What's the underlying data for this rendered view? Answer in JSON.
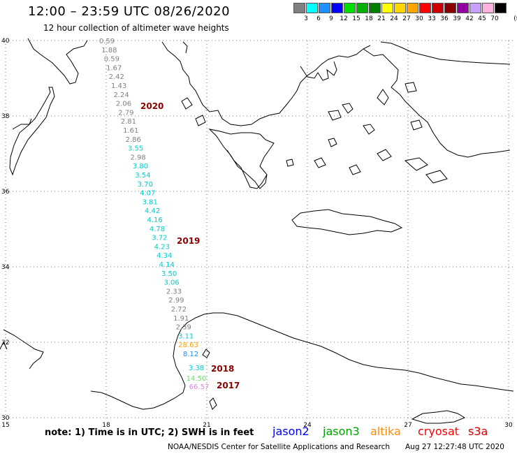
{
  "title": "12:00 – 23:59 UTC 08/26/2020",
  "subtitle": "12 hour collection of altimeter wave heights",
  "legend": {
    "unit": "(ft)",
    "swatches": [
      {
        "label": "3",
        "color": "#808080"
      },
      {
        "label": "6",
        "color": "#00ffff"
      },
      {
        "label": "9",
        "color": "#1e90ff"
      },
      {
        "label": "12",
        "color": "#0000ff"
      },
      {
        "label": "15",
        "color": "#00e000"
      },
      {
        "label": "18",
        "color": "#00b000"
      },
      {
        "label": "21",
        "color": "#008000"
      },
      {
        "label": "24",
        "color": "#ffff00"
      },
      {
        "label": "27",
        "color": "#ffd700"
      },
      {
        "label": "30",
        "color": "#ffa500"
      },
      {
        "label": "33",
        "color": "#ff0000"
      },
      {
        "label": "36",
        "color": "#cc0000"
      },
      {
        "label": "39",
        "color": "#8b0000"
      },
      {
        "label": "42",
        "color": "#9400a0"
      },
      {
        "label": "45",
        "color": "#c8a0ff"
      },
      {
        "label": "70",
        "color": "#ffb0e0"
      },
      {
        "label": "",
        "color": "#000000"
      }
    ]
  },
  "axes": {
    "lon_ticks": [
      "15",
      "18",
      "21",
      "24",
      "27",
      "30"
    ],
    "lat_ticks": [
      "40",
      "38",
      "36",
      "34",
      "32",
      "30"
    ]
  },
  "track_points": [
    {
      "value": "0.59",
      "color": "#808080"
    },
    {
      "value": "1.88",
      "color": "#808080"
    },
    {
      "value": "0.59",
      "color": "#808080"
    },
    {
      "value": "1.67",
      "color": "#808080"
    },
    {
      "value": "2.42",
      "color": "#808080"
    },
    {
      "value": "1.43",
      "color": "#808080"
    },
    {
      "value": "2.24",
      "color": "#808080"
    },
    {
      "value": "2.06",
      "color": "#808080"
    },
    {
      "value": "2.79",
      "color": "#808080"
    },
    {
      "value": "2.81",
      "color": "#808080"
    },
    {
      "value": "1.61",
      "color": "#808080"
    },
    {
      "value": "2.86",
      "color": "#808080"
    },
    {
      "value": "3.55",
      "color": "#00cccc"
    },
    {
      "value": "2.98",
      "color": "#808080"
    },
    {
      "value": "3.80",
      "color": "#00cccc"
    },
    {
      "value": "3.54",
      "color": "#00cccc"
    },
    {
      "value": "3.70",
      "color": "#00cccc"
    },
    {
      "value": "4.07",
      "color": "#00cccc"
    },
    {
      "value": "3.81",
      "color": "#00cccc"
    },
    {
      "value": "4.42",
      "color": "#00cccc"
    },
    {
      "value": "4.16",
      "color": "#00cccc"
    },
    {
      "value": "4.78",
      "color": "#00cccc"
    },
    {
      "value": "3.72",
      "color": "#00cccc"
    },
    {
      "value": "4.23",
      "color": "#00cccc"
    },
    {
      "value": "4.34",
      "color": "#00cccc"
    },
    {
      "value": "4.14",
      "color": "#00cccc"
    },
    {
      "value": "3.50",
      "color": "#00cccc"
    },
    {
      "value": "3.06",
      "color": "#00cccc"
    },
    {
      "value": "2.33",
      "color": "#808080"
    },
    {
      "value": "2.99",
      "color": "#808080"
    },
    {
      "value": "2.72",
      "color": "#808080"
    },
    {
      "value": "1.91",
      "color": "#808080"
    },
    {
      "value": "2.39",
      "color": "#808080"
    },
    {
      "value": "3.11",
      "color": "#00cccc"
    },
    {
      "value": "28.63",
      "color": "#ffa500"
    },
    {
      "value": "8.12",
      "color": "#1e90ff"
    }
  ],
  "cluster_points": [
    {
      "value": "3.38",
      "color": "#00cccc"
    },
    {
      "value": "14.50",
      "color": "#66dd66"
    },
    {
      "value": "66.57",
      "color": "#dd88dd"
    }
  ],
  "markers": [
    {
      "label": "2020",
      "color": "#8b0000"
    },
    {
      "label": "2019",
      "color": "#8b0000"
    },
    {
      "label": "2018",
      "color": "#8b0000"
    },
    {
      "label": "2017",
      "color": "#8b0000"
    }
  ],
  "note": "note: 1) Time is in UTC; 2) SWH is in feet",
  "satellites": [
    {
      "name": "jason2",
      "color": "#0000ff"
    },
    {
      "name": "jason3",
      "color": "#00a000"
    },
    {
      "name": "altika",
      "color": "#ff8c00"
    },
    {
      "name": "cryosat",
      "color": "#ff0000"
    },
    {
      "name": "s3a",
      "color": "#cc0000"
    }
  ],
  "credit": "NOAA/NESDIS Center for Satellite Applications and Research",
  "timestamp": "Aug 27 12:27:48 UTC 2020"
}
